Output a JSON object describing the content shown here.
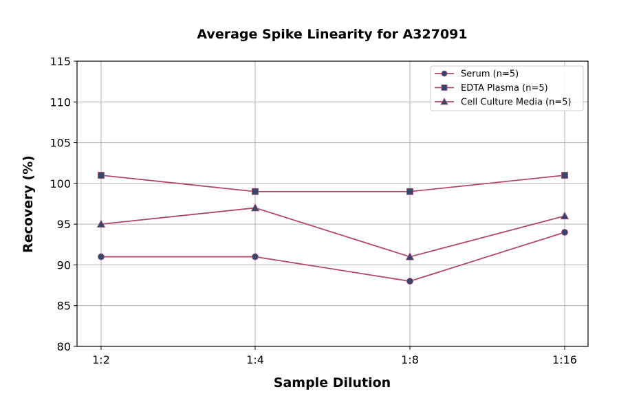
{
  "chart_data": {
    "type": "line",
    "title": "Average Spike Linearity for A327091",
    "xlabel": "Sample Dilution",
    "ylabel": "Recovery (%)",
    "categories": [
      "1:2",
      "1:4",
      "1:8",
      "1:16"
    ],
    "ylim": [
      80,
      115
    ],
    "yticks": [
      80,
      85,
      90,
      95,
      100,
      105,
      110,
      115
    ],
    "grid": true,
    "legend_position": "top-right",
    "line_color": "#b0476e",
    "marker_color": "#34466b",
    "series": [
      {
        "name": "Serum (n=5)",
        "marker": "circle",
        "values": [
          91,
          91,
          88,
          94
        ]
      },
      {
        "name": "EDTA Plasma (n=5)",
        "marker": "square",
        "values": [
          101,
          99,
          99,
          101
        ]
      },
      {
        "name": "Cell Culture Media (n=5)",
        "marker": "triangle",
        "values": [
          95,
          97,
          91,
          96
        ]
      }
    ]
  }
}
